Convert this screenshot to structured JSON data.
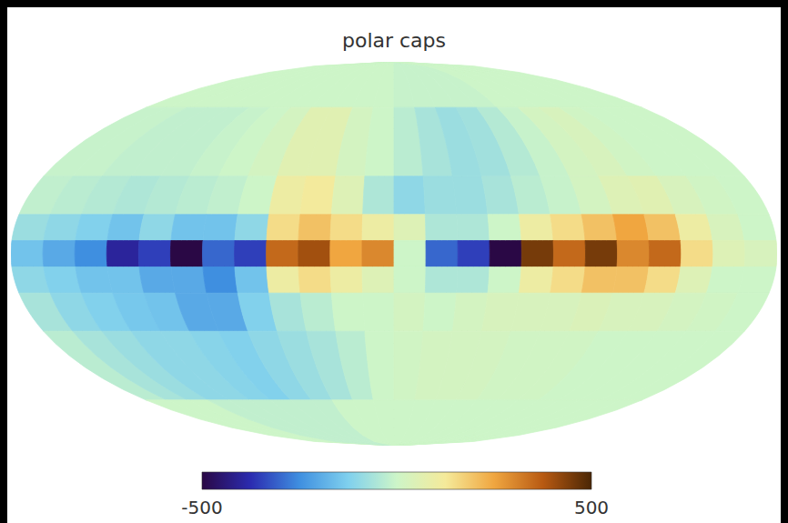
{
  "chart_data": {
    "type": "mollweide_map",
    "title": "polar caps",
    "tick_labels": false,
    "lon_edges": [
      180,
      165,
      150,
      135,
      120,
      105,
      90,
      75,
      60,
      45,
      30,
      15,
      0,
      -15,
      -30,
      -45,
      -60,
      -75,
      -90,
      -105,
      -120,
      -135,
      -150,
      -165,
      -180
    ],
    "lat_edges": [
      90,
      60,
      30,
      15,
      5,
      -5,
      -15,
      -30,
      -60,
      -90
    ],
    "cells": [
      [
        0,
        0,
        0,
        0,
        0,
        0,
        0,
        0,
        0,
        0,
        0,
        0,
        -10,
        -10,
        -10,
        -10,
        -10,
        0,
        0,
        0,
        0,
        0,
        0,
        0
      ],
      [
        -10,
        -10,
        -20,
        -20,
        -20,
        -10,
        0,
        20,
        60,
        60,
        20,
        0,
        -30,
        -60,
        -80,
        -70,
        -40,
        -10,
        20,
        30,
        10,
        0,
        0,
        0
      ],
      [
        -20,
        -30,
        -40,
        -50,
        -40,
        -30,
        -20,
        0,
        100,
        120,
        50,
        -50,
        -100,
        -80,
        -80,
        -60,
        -30,
        -10,
        20,
        50,
        60,
        30,
        10,
        0
      ],
      [
        -80,
        -100,
        -120,
        -150,
        -100,
        -150,
        -150,
        -100,
        150,
        200,
        150,
        100,
        50,
        -50,
        -50,
        0,
        100,
        150,
        200,
        250,
        200,
        100,
        30,
        0
      ],
      [
        -150,
        -200,
        -250,
        -400,
        -350,
        -500,
        -300,
        -350,
        350,
        400,
        250,
        300,
        0,
        -300,
        -350,
        -500,
        450,
        350,
        450,
        300,
        350,
        150,
        50,
        30
      ],
      [
        -100,
        -120,
        -150,
        -150,
        -200,
        -200,
        -250,
        -150,
        100,
        150,
        100,
        50,
        0,
        -50,
        -50,
        0,
        100,
        150,
        200,
        200,
        150,
        50,
        0,
        0
      ],
      [
        -60,
        -100,
        -120,
        -140,
        -150,
        -200,
        -200,
        -120,
        -60,
        -30,
        0,
        0,
        20,
        0,
        20,
        30,
        30,
        30,
        40,
        30,
        30,
        20,
        10,
        0
      ],
      [
        -30,
        -60,
        -80,
        -100,
        -100,
        -110,
        -120,
        -100,
        -80,
        -60,
        -30,
        0,
        10,
        20,
        20,
        20,
        10,
        10,
        10,
        0,
        0,
        0,
        0,
        0
      ],
      [
        0,
        0,
        0,
        -20,
        -20,
        -20,
        -20,
        -20,
        -20,
        0,
        0,
        0,
        0,
        0,
        0,
        0,
        0,
        0,
        0,
        0,
        0,
        0,
        0,
        0
      ]
    ],
    "colorbar": {
      "range": [
        -500,
        500
      ],
      "ticks": [
        -500,
        500
      ]
    }
  }
}
